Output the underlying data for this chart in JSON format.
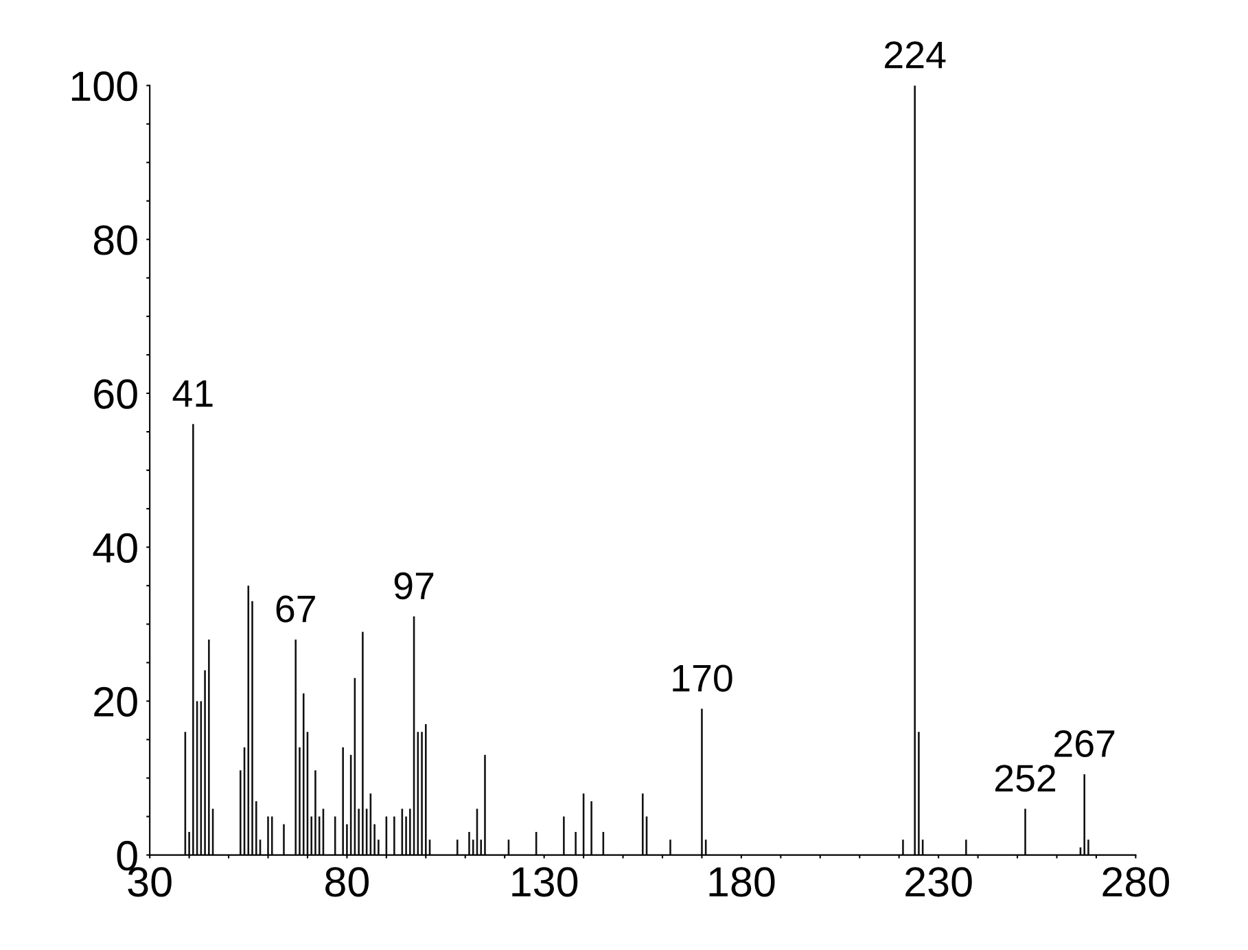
{
  "chart_data": {
    "type": "bar",
    "color": "#111111",
    "x": [
      39,
      40,
      41,
      42,
      43,
      44,
      45,
      46,
      53,
      54,
      55,
      56,
      57,
      58,
      60,
      61,
      64,
      67,
      68,
      69,
      70,
      71,
      72,
      73,
      74,
      77,
      79,
      80,
      81,
      82,
      83,
      84,
      85,
      86,
      87,
      88,
      90,
      92,
      94,
      95,
      96,
      97,
      98,
      99,
      100,
      101,
      108,
      111,
      112,
      113,
      114,
      115,
      121,
      128,
      135,
      138,
      140,
      142,
      145,
      155,
      156,
      162,
      170,
      171,
      221,
      224,
      225,
      226,
      237,
      252,
      266,
      267,
      268
    ],
    "values": [
      16,
      3,
      56,
      20,
      20,
      24,
      28,
      6,
      11,
      14,
      35,
      33,
      7,
      2,
      5,
      5,
      4,
      28,
      14,
      21,
      16,
      5,
      11,
      5,
      6,
      5,
      14,
      4,
      13,
      23,
      6,
      29,
      6,
      8,
      4,
      2,
      5,
      5,
      6,
      5,
      6,
      31,
      16,
      16,
      17,
      2,
      2,
      3,
      2,
      6,
      2,
      13,
      2,
      3,
      5,
      3,
      8,
      7,
      3,
      8,
      5,
      2,
      19,
      2,
      2,
      100,
      16,
      2,
      2,
      6,
      1,
      10.5,
      2
    ],
    "xlim": [
      30,
      280
    ],
    "xticks": [
      30,
      {
        "value": 40,
        "label": null
      },
      {
        "value": 50,
        "label": null
      },
      {
        "value": 60,
        "label": null
      },
      {
        "value": 70,
        "label": null
      },
      80,
      {
        "value": 90,
        "label": null
      },
      {
        "value": 100,
        "label": null
      },
      {
        "value": 110,
        "label": null
      },
      {
        "value": 120,
        "label": null
      },
      130,
      {
        "value": 140,
        "label": null
      },
      {
        "value": 150,
        "label": null
      },
      {
        "value": 160,
        "label": null
      },
      {
        "value": 170,
        "label": null
      },
      180,
      {
        "value": 190,
        "label": null
      },
      {
        "value": 200,
        "label": null
      },
      {
        "value": 210,
        "label": null
      },
      {
        "value": 220,
        "label": null
      },
      230,
      {
        "value": 240,
        "label": null
      },
      {
        "value": 250,
        "label": null
      },
      {
        "value": 260,
        "label": null
      },
      {
        "value": 270,
        "label": null
      },
      280
    ],
    "ylim": [
      0,
      100
    ],
    "yticks": [
      0,
      {
        "value": 5,
        "label": null
      },
      {
        "value": 10,
        "label": null
      },
      {
        "value": 15,
        "label": null
      },
      20,
      {
        "value": 25,
        "label": null
      },
      {
        "value": 30,
        "label": null
      },
      {
        "value": 35,
        "label": null
      },
      40,
      {
        "value": 45,
        "label": null
      },
      {
        "value": 50,
        "label": null
      },
      {
        "value": 55,
        "label": null
      },
      60,
      {
        "value": 65,
        "label": null
      },
      {
        "value": 70,
        "label": null
      },
      {
        "value": 75,
        "label": null
      },
      80,
      {
        "value": 85,
        "label": null
      },
      {
        "value": 90,
        "label": null
      },
      {
        "value": 95,
        "label": null
      },
      100
    ],
    "annotations": [
      {
        "text": "41",
        "x": 41,
        "y": 56
      },
      {
        "text": "67",
        "x": 67,
        "y": 28
      },
      {
        "text": "97",
        "x": 97,
        "y": 31
      },
      {
        "text": "170",
        "x": 170,
        "y": 19
      },
      {
        "text": "224",
        "x": 224,
        "y": 100
      },
      {
        "text": "252",
        "x": 252,
        "y": 6
      },
      {
        "text": "267",
        "x": 267,
        "y": 10.5
      }
    ],
    "grid": false
  }
}
